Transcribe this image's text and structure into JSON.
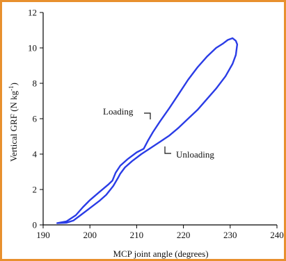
{
  "colors": {
    "border": "#e8902e",
    "curve": "#2a3ce6",
    "axis": "#000000"
  },
  "chart_data": {
    "type": "line",
    "title": "",
    "xlabel": "MCP joint angle (degrees)",
    "ylabel_main": "Vertical GRF (N kg",
    "ylabel_sup": "-1",
    "ylabel_tail": ")",
    "xlim": [
      190,
      240
    ],
    "ylim": [
      0,
      12
    ],
    "xticks": [
      "190",
      "200",
      "210",
      "220",
      "230",
      "240"
    ],
    "yticks": [
      "0",
      "2",
      "4",
      "6",
      "8",
      "10",
      "12"
    ],
    "grid": false,
    "legend": "none",
    "annotations": [
      {
        "text": "Loading"
      },
      {
        "text": "Unloading"
      }
    ],
    "series": [
      {
        "x": [
          193,
          195,
          197,
          198.5,
          200,
          202,
          204,
          204.8,
          205.5,
          206.5,
          208,
          210,
          211.5,
          212.5,
          213.5,
          215,
          217,
          219,
          221,
          223,
          225,
          227,
          228.5,
          229.5,
          230.5,
          231.2,
          231.5,
          231.2,
          230.5,
          229,
          227,
          225,
          223,
          221,
          219,
          217,
          215,
          213,
          211,
          209,
          207.5,
          206.5,
          206,
          205,
          203.5,
          202,
          200,
          198,
          196.5,
          195,
          193
        ],
        "y": [
          0.1,
          0.2,
          0.55,
          1.0,
          1.4,
          1.85,
          2.3,
          2.5,
          2.95,
          3.35,
          3.7,
          4.1,
          4.3,
          4.8,
          5.25,
          5.85,
          6.6,
          7.4,
          8.2,
          8.9,
          9.5,
          10.0,
          10.25,
          10.45,
          10.55,
          10.4,
          10.2,
          9.6,
          9.1,
          8.4,
          7.7,
          7.1,
          6.5,
          6.0,
          5.5,
          5.05,
          4.7,
          4.35,
          4.0,
          3.6,
          3.25,
          2.9,
          2.65,
          2.2,
          1.7,
          1.35,
          0.95,
          0.55,
          0.25,
          0.12,
          0.1
        ]
      }
    ]
  }
}
